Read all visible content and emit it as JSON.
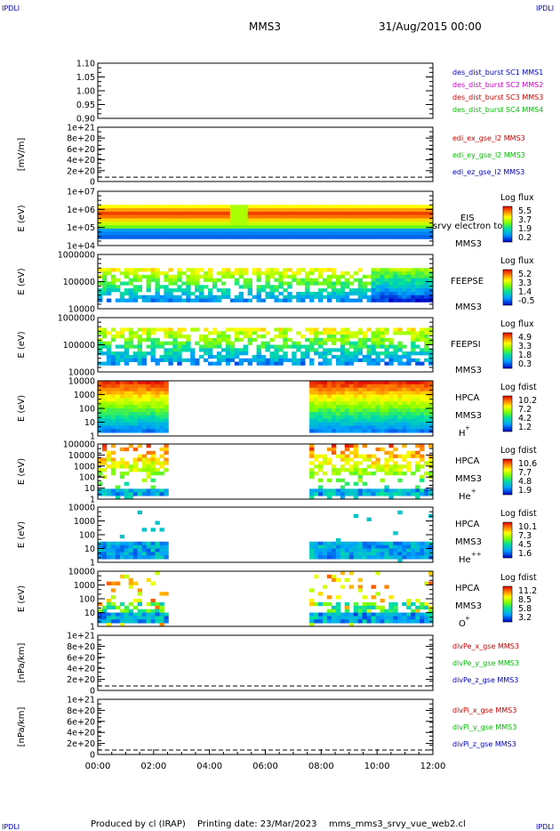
{
  "corner_mark": "IPDLI",
  "header": {
    "spacecraft": "MMS3",
    "date_time": "31/Aug/2015 00:00"
  },
  "footer": {
    "producer": "Produced by cl (IRAP)",
    "print_date": "Printing date: 23/Mar/2023",
    "file": "mms_mms3_srvy_vue_web2.cl"
  },
  "colors": {
    "red": "#cc0000",
    "green": "#00c000",
    "blue": "#0000bb",
    "magenta": "#cc00cc",
    "black": "#000000"
  },
  "chart_data": {
    "type": "multi-panel time series / spectrogram",
    "x": {
      "ticks": [
        "00:00",
        "02:00",
        "04:00",
        "06:00",
        "08:00",
        "10:00",
        "12:00"
      ],
      "range_hours": [
        0,
        12
      ]
    },
    "panels": [
      {
        "id": "des",
        "type": "line",
        "ylabel": "",
        "yticks": [
          "1.10",
          "1.05",
          "1.00",
          "0.95",
          "0.90"
        ],
        "ylim": [
          0.9,
          1.1
        ],
        "legend": [
          {
            "text": "des_dist_burst SC1 MMS1",
            "color": "blue"
          },
          {
            "text": "des_dist_burst SC2 MMS2",
            "color": "magenta"
          },
          {
            "text": "des_dist_burst SC3 MMS3",
            "color": "red"
          },
          {
            "text": "des_dist_burst SC4 MMS4",
            "color": "green"
          }
        ]
      },
      {
        "id": "edi",
        "type": "line",
        "ylabel": "[mV/m]",
        "yticks": [
          "1e+21",
          "8e+20",
          "6e+20",
          "4e+20",
          "2e+20",
          "0"
        ],
        "ylim": [
          0,
          1e+21
        ],
        "dashed_zero": true,
        "legend": [
          {
            "text": "edi_ex_gse_l2 MMS3",
            "color": "red"
          },
          {
            "text": "edi_ey_gse_l2 MMS3",
            "color": "green"
          },
          {
            "text": "edi_ez_gse_l2 MMS3",
            "color": "blue"
          }
        ]
      },
      {
        "id": "eis",
        "type": "heatmap",
        "ylabel": "E (eV)",
        "yticks": [
          "1e+07",
          "1e+06",
          "1e+05",
          "1e+04"
        ],
        "log_range": [
          4,
          7
        ],
        "labels": [
          "EIS",
          "MMS3"
        ],
        "overlay_text": "srvy electron to",
        "cbar": {
          "title": "Log flux",
          "ticks": [
            "5.5",
            "3.7",
            "1.9",
            "0.2"
          ]
        }
      },
      {
        "id": "feepse",
        "type": "heatmap",
        "ylabel": "E (eV)",
        "yticks": [
          "1000000",
          "100000",
          "10000"
        ],
        "log_range": [
          4,
          6
        ],
        "labels": [
          "FEEPSE",
          "MMS3"
        ],
        "cbar": {
          "title": "Log flux",
          "ticks": [
            "5.2",
            "3.3",
            "1.4",
            "-0.5"
          ]
        }
      },
      {
        "id": "feepsi",
        "type": "heatmap",
        "ylabel": "E (eV)",
        "yticks": [
          "1000000",
          "100000",
          "10000"
        ],
        "log_range": [
          4,
          6
        ],
        "labels": [
          "FEEPSI",
          "MMS3"
        ],
        "cbar": {
          "title": "Log flux",
          "ticks": [
            "4.9",
            "3.3",
            "1.8",
            "0.3"
          ]
        }
      },
      {
        "id": "hpca_h",
        "type": "heatmap",
        "ylabel": "E (eV)",
        "yticks": [
          "10000",
          "1000",
          "100",
          "10",
          "1"
        ],
        "log_range": [
          0,
          4.3
        ],
        "labels": [
          "HPCA",
          "MMS3"
        ],
        "species": "H",
        "species_sup": "+",
        "cbar": {
          "title": "Log fdist",
          "ticks": [
            "10.2",
            "7.2",
            "4.2",
            "1.2"
          ]
        }
      },
      {
        "id": "hpca_he",
        "type": "heatmap",
        "ylabel": "E (eV)",
        "yticks": [
          "100000",
          "10000",
          "1000",
          "100",
          "10",
          "1"
        ],
        "log_range": [
          0,
          5
        ],
        "labels": [
          "HPCA",
          "MMS3"
        ],
        "species": "He",
        "species_sup": "+",
        "cbar": {
          "title": "Log fdist",
          "ticks": [
            "10.6",
            "7.7",
            "4.8",
            "1.9"
          ]
        }
      },
      {
        "id": "hpca_he2",
        "type": "heatmap",
        "ylabel": "E (eV)",
        "yticks": [
          "10000",
          "1000",
          "100",
          "10",
          "1"
        ],
        "log_range": [
          0,
          4.3
        ],
        "labels": [
          "HPCA",
          "MMS3"
        ],
        "species": "He",
        "species_sup": "++",
        "cbar": {
          "title": "Log fdist",
          "ticks": [
            "10.1",
            "7.3",
            "4.5",
            "1.6"
          ]
        }
      },
      {
        "id": "hpca_o",
        "type": "heatmap",
        "ylabel": "E (eV)",
        "yticks": [
          "10000",
          "1000",
          "100",
          "10",
          "1"
        ],
        "log_range": [
          0,
          4.3
        ],
        "labels": [
          "HPCA",
          "MMS3"
        ],
        "species": "O",
        "species_sup": "+",
        "cbar": {
          "title": "Log fdist",
          "ticks": [
            "11.2",
            "8.5",
            "5.8",
            "3.2"
          ]
        }
      },
      {
        "id": "divpe",
        "type": "line",
        "ylabel": "[nPa/km]",
        "yticks": [
          "1e+21",
          "8e+20",
          "6e+20",
          "4e+20",
          "2e+20",
          "0"
        ],
        "ylim": [
          0,
          1e+21
        ],
        "dashed_zero": true,
        "legend": [
          {
            "text": "divPe_x_gse MMS3",
            "color": "red"
          },
          {
            "text": "divPe_y_gse MMS3",
            "color": "green"
          },
          {
            "text": "divPe_z_gse MMS3",
            "color": "blue"
          }
        ]
      },
      {
        "id": "divpi",
        "type": "line",
        "ylabel": "[nPa/km]",
        "yticks": [
          "1e+21",
          "8e+20",
          "6e+20",
          "4e+20",
          "2e+20",
          "0"
        ],
        "ylim": [
          0,
          1e+21
        ],
        "dashed_zero": true,
        "legend": [
          {
            "text": "divPi_x_gse MMS3",
            "color": "red"
          },
          {
            "text": "divPi_y_gse MMS3",
            "color": "green"
          },
          {
            "text": "divPi_z_gse MMS3",
            "color": "blue"
          }
        ]
      }
    ]
  }
}
